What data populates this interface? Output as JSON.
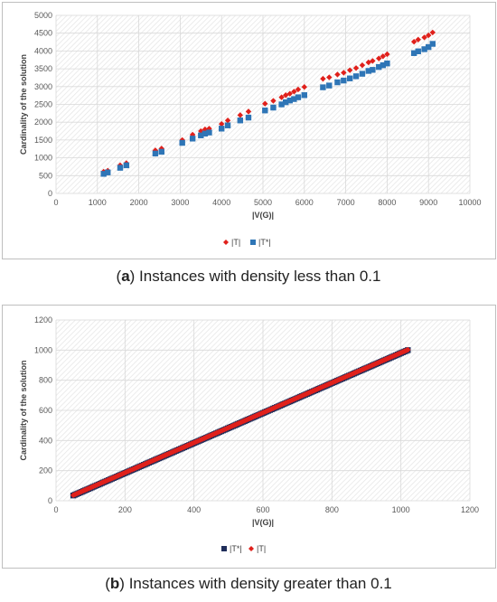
{
  "chart_data": [
    {
      "type": "scatter",
      "caption_letter": "a",
      "caption_text": "Instances with density less than 0.1",
      "xlabel": "|V(G)|",
      "ylabel": "Cardinality of the solution",
      "xlim": [
        0,
        10000
      ],
      "ylim": [
        0,
        5000
      ],
      "xticks": [
        "0",
        "1000",
        "2000",
        "3000",
        "4000",
        "5000",
        "6000",
        "7000",
        "8000",
        "9000",
        "10000"
      ],
      "yticks": [
        "0",
        "500",
        "1000",
        "1500",
        "2000",
        "2500",
        "3000",
        "3500",
        "4000",
        "4500",
        "5000"
      ],
      "grid": true,
      "legend_position": "bottom",
      "series": [
        {
          "name": "|T|",
          "color": "#e0201b",
          "marker": "diamond",
          "x": [
            1150,
            1250,
            1550,
            1700,
            2400,
            2550,
            3050,
            3300,
            3500,
            3600,
            3700,
            4000,
            4150,
            4450,
            4650,
            5050,
            5250,
            5450,
            5550,
            5650,
            5750,
            5850,
            6000,
            6450,
            6600,
            6800,
            6950,
            7100,
            7250,
            7400,
            7550,
            7650,
            7800,
            7900,
            8000,
            8650,
            8750,
            8900,
            9000,
            9100
          ],
          "y": [
            610,
            640,
            790,
            850,
            1210,
            1260,
            1500,
            1650,
            1750,
            1800,
            1820,
            1950,
            2050,
            2200,
            2300,
            2520,
            2600,
            2700,
            2760,
            2800,
            2860,
            2920,
            2990,
            3220,
            3260,
            3340,
            3390,
            3460,
            3520,
            3600,
            3680,
            3720,
            3790,
            3850,
            3910,
            4260,
            4320,
            4380,
            4440,
            4520
          ]
        },
        {
          "name": "|T*|",
          "color": "#2e75b6",
          "marker": "square",
          "x": [
            1150,
            1250,
            1550,
            1700,
            2400,
            2550,
            3050,
            3300,
            3500,
            3600,
            3700,
            4000,
            4150,
            4450,
            4650,
            5050,
            5250,
            5450,
            5550,
            5650,
            5750,
            5850,
            6000,
            6450,
            6600,
            6800,
            6950,
            7100,
            7250,
            7400,
            7550,
            7650,
            7800,
            7900,
            8000,
            8650,
            8750,
            8900,
            9000,
            9100
          ],
          "y": [
            550,
            590,
            720,
            790,
            1120,
            1170,
            1420,
            1540,
            1630,
            1680,
            1710,
            1820,
            1910,
            2050,
            2130,
            2330,
            2410,
            2500,
            2560,
            2610,
            2650,
            2700,
            2760,
            2980,
            3030,
            3120,
            3170,
            3230,
            3290,
            3360,
            3440,
            3470,
            3550,
            3600,
            3650,
            3940,
            3990,
            4050,
            4110,
            4200
          ]
        }
      ]
    },
    {
      "type": "scatter",
      "caption_letter": "b",
      "caption_text": "Instances with density greater than 0.1",
      "xlabel": "|V(G)|",
      "ylabel": "Cardinality of the solution",
      "xlim": [
        0,
        1200
      ],
      "ylim": [
        0,
        1200
      ],
      "xticks": [
        "0",
        "200",
        "400",
        "600",
        "800",
        "1000",
        "1200"
      ],
      "yticks": [
        "0",
        "200",
        "400",
        "600",
        "800",
        "1000",
        "1200"
      ],
      "grid": true,
      "legend_position": "bottom",
      "series": [
        {
          "name": "|T*|",
          "color": "#1f2d5a",
          "marker": "square",
          "x_range": [
            50,
            1020
          ],
          "y_range": [
            35,
            1000
          ],
          "count": 200
        },
        {
          "name": "|T|",
          "color": "#e0201b",
          "marker": "diamond",
          "x_range": [
            50,
            1020
          ],
          "y_range": [
            37,
            1002
          ],
          "count": 200
        }
      ]
    }
  ]
}
